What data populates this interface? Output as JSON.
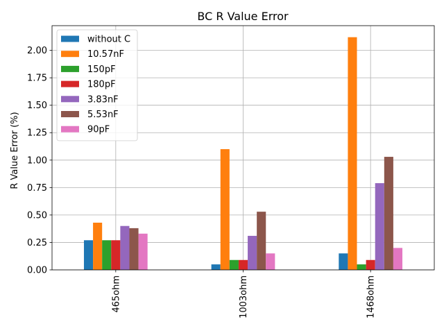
{
  "chart_data": {
    "type": "bar",
    "title": "BC R Value Error",
    "xlabel": "",
    "ylabel": "R Value Error (%)",
    "categories": [
      "465ohm",
      "1003ohm",
      "1468ohm"
    ],
    "ylim": [
      0,
      2.225
    ],
    "yticks": [
      0.0,
      0.25,
      0.5,
      0.75,
      1.0,
      1.25,
      1.5,
      1.75,
      2.0
    ],
    "ytick_labels": [
      "0.00",
      "0.25",
      "0.50",
      "0.75",
      "1.00",
      "1.25",
      "1.50",
      "1.75",
      "2.00"
    ],
    "grid": true,
    "legend_position": "top-left",
    "series": [
      {
        "name": "without C",
        "color": "#1f77b4",
        "values": [
          0.27,
          0.05,
          0.15
        ]
      },
      {
        "name": "10.57nF",
        "color": "#ff7f0e",
        "values": [
          0.43,
          1.1,
          2.12
        ]
      },
      {
        "name": "150pF",
        "color": "#2ca02c",
        "values": [
          0.27,
          0.09,
          0.05
        ]
      },
      {
        "name": "180pF",
        "color": "#d62728",
        "values": [
          0.27,
          0.09,
          0.09
        ]
      },
      {
        "name": "3.83nF",
        "color": "#9467bd",
        "values": [
          0.4,
          0.31,
          0.79
        ]
      },
      {
        "name": "5.53nF",
        "color": "#8c564b",
        "values": [
          0.38,
          0.53,
          1.03
        ]
      },
      {
        "name": "90pF",
        "color": "#e377c2",
        "values": [
          0.33,
          0.15,
          0.2
        ]
      }
    ]
  }
}
